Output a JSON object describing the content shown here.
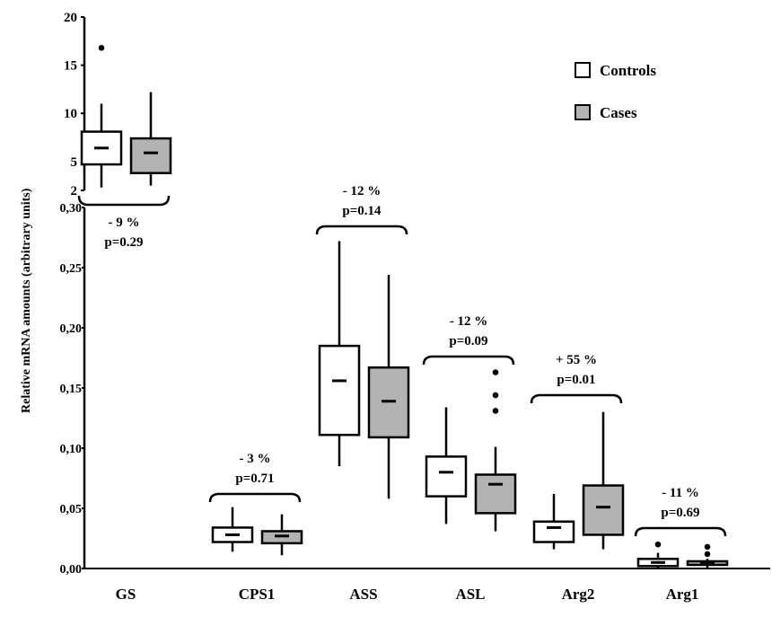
{
  "chart_data": {
    "type": "boxplot",
    "title": "",
    "xlabel": "",
    "ylabel": "Relative mRNA amounts (arbitrary units)",
    "axis_break": true,
    "upper_axis": {
      "ylim": [
        2,
        20
      ],
      "ticks": [
        "2",
        "5",
        "10",
        "15",
        "20"
      ],
      "tick_values": [
        2,
        5,
        10,
        15,
        20
      ]
    },
    "lower_axis": {
      "ylim": [
        0,
        0.3
      ],
      "ticks": [
        "0,00",
        "0,05",
        "0,10",
        "0,15",
        "0,20",
        "0,25",
        "0,30"
      ],
      "tick_values": [
        0,
        0.05,
        0.1,
        0.15,
        0.2,
        0.25,
        0.3
      ]
    },
    "legend": {
      "placement": "top-right",
      "entries": [
        {
          "name": "Controls",
          "color": "#ffffff"
        },
        {
          "name": "Cases",
          "color": "#b3b3b3"
        }
      ]
    },
    "categories": [
      "GS",
      "CPS1",
      "ASS",
      "ASL",
      "Arg2",
      "Arg1"
    ],
    "groups": [
      {
        "category": "GS",
        "axis": "upper",
        "change": "- 9 %",
        "p": "p=0.29",
        "controls": {
          "min": 2.3,
          "q1": 4.7,
          "median": 6.4,
          "q3": 8.1,
          "max": 11.0,
          "outliers": [
            16.8
          ]
        },
        "cases": {
          "min": 2.5,
          "q1": 3.8,
          "median": 5.9,
          "q3": 7.4,
          "max": 12.2,
          "outliers": []
        }
      },
      {
        "category": "CPS1",
        "axis": "lower",
        "change": "- 3 %",
        "p": "p=0.71",
        "controls": {
          "min": 0.014,
          "q1": 0.022,
          "median": 0.028,
          "q3": 0.034,
          "max": 0.051,
          "outliers": []
        },
        "cases": {
          "min": 0.011,
          "q1": 0.021,
          "median": 0.027,
          "q3": 0.031,
          "max": 0.045,
          "outliers": []
        }
      },
      {
        "category": "ASS",
        "axis": "lower",
        "change": "- 12 %",
        "p": "p=0.14",
        "controls": {
          "min": 0.085,
          "q1": 0.111,
          "median": 0.156,
          "q3": 0.185,
          "max": 0.272,
          "outliers": []
        },
        "cases": {
          "min": 0.058,
          "q1": 0.109,
          "median": 0.139,
          "q3": 0.167,
          "max": 0.244,
          "outliers": []
        }
      },
      {
        "category": "ASL",
        "axis": "lower",
        "change": "- 12 %",
        "p": "p=0.09",
        "controls": {
          "min": 0.037,
          "q1": 0.06,
          "median": 0.08,
          "q3": 0.093,
          "max": 0.134,
          "outliers": []
        },
        "cases": {
          "min": 0.031,
          "q1": 0.046,
          "median": 0.07,
          "q3": 0.078,
          "max": 0.101,
          "outliers": [
            0.131,
            0.144,
            0.163
          ]
        }
      },
      {
        "category": "Arg2",
        "axis": "lower",
        "change": "+ 55 %",
        "p": "p=0.01",
        "controls": {
          "min": 0.016,
          "q1": 0.022,
          "median": 0.034,
          "q3": 0.039,
          "max": 0.062,
          "outliers": []
        },
        "cases": {
          "min": 0.016,
          "q1": 0.028,
          "median": 0.051,
          "q3": 0.069,
          "max": 0.13,
          "outliers": []
        }
      },
      {
        "category": "Arg1",
        "axis": "lower",
        "change": "- 11 %",
        "p": "p=0.69",
        "controls": {
          "min": 0.0,
          "q1": 0.002,
          "median": 0.005,
          "q3": 0.008,
          "max": 0.013,
          "outliers": [
            0.02
          ]
        },
        "cases": {
          "min": 0.0,
          "q1": 0.003,
          "median": 0.005,
          "q3": 0.006,
          "max": 0.008,
          "outliers": [
            0.012,
            0.018
          ]
        }
      }
    ]
  }
}
